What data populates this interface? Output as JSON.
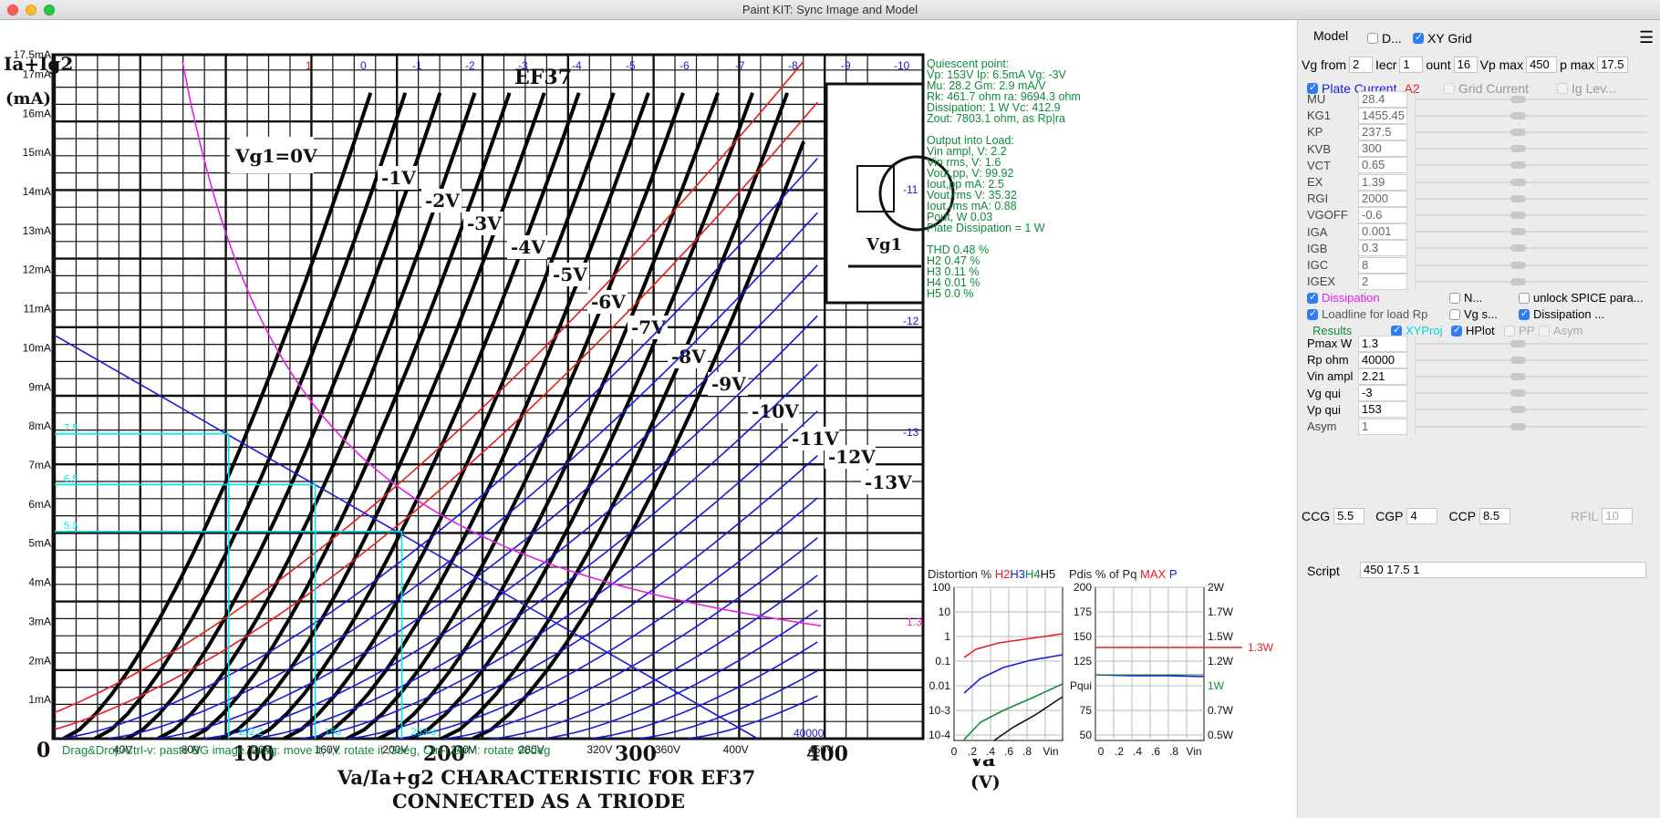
{
  "window": {
    "title": "Paint KIT: Sync Image and Model"
  },
  "plot": {
    "y_ticks": [
      "17.5mA",
      "17mA",
      "16mA",
      "15mA",
      "14mA",
      "13mA",
      "12mA",
      "11mA",
      "10mA",
      "9mA",
      "8mA",
      "7mA",
      "6mA",
      "5mA",
      "4mA",
      "3mA",
      "2mA",
      "1mA"
    ],
    "x_ticks": [
      "40V",
      "80V",
      "120V",
      "160V",
      "200V",
      "240V",
      "280V",
      "320V",
      "360V",
      "400V",
      "450V"
    ],
    "grid_labels_top": [
      "1",
      "0",
      "-1",
      "-2",
      "-3",
      "-4",
      "-5",
      "-6",
      "-7",
      "-8",
      "-9",
      "-10"
    ],
    "grid_labels_right": [
      "-11",
      "-12",
      "-13"
    ],
    "dissipation_label": "1.3",
    "loadline_label": "40000",
    "proj_labels_y": [
      "7.8",
      "6.5",
      "5.3"
    ],
    "proj_labels_x": [
      "102.2",
      "153",
      "203.8"
    ],
    "status_hint": "Drag&Drop/Ctrl-v: paste BG image. Drag: move it, r,l: rotate it .3deg, Ctrl-r,Ctrl-l: rotate 90deg",
    "bg_image": {
      "title": "EF37",
      "y_axis_top": "Ia+Ig2",
      "y_axis_unit": "(mA)",
      "vg_label": "Vg1=0V",
      "curve_labels": [
        "-1V",
        "-2V",
        "-3V",
        "-4V",
        "-5V",
        "-6V",
        "-7V",
        "-8V",
        "-9V",
        "-10V",
        "-11V",
        "-12V",
        "-13V"
      ],
      "x_numbers": [
        "0",
        "100",
        "200",
        "300",
        "400"
      ],
      "caption_1": "Va/Ia+g2 CHARACTERISTIC FOR EF37",
      "caption_2": "CONNECTED AS A TRIODE",
      "va_label": "Va",
      "va_unit": "(V)",
      "vg1_inset": "Vg1"
    },
    "info_lines": [
      "Quiescent point:",
      "Vp: 153V  Ip: 6.5mA  Vg: -3V",
      "Mu: 28.2 Gm: 2.9 mA/V",
      "Rk: 461.7 ohm ra: 9694.3 ohm",
      "Dissipation: 1 W Vc: 412.9",
      "Zout: 7803.1 ohm, as Rp|ra",
      "",
      "Output into Load:",
      "Vin ampl, V: 2.2",
      "Vin rms, V: 1.6",
      "Vout,pp,   V: 99.92",
      "Iout,pp  mA: 2.5",
      "Vout,rms  V: 35.32",
      "Iout,rms  mA: 0.88",
      "Pout, W      0.03",
      "Plate Dissipation = 1 W",
      "",
      "THD 0.48 %",
      "  H2 0.47 %",
      "  H3 0.11 %",
      "  H4 0.01 %",
      "  H5 0.0 %"
    ]
  },
  "distortion": {
    "title_prefix": "Distortion %",
    "h2": "H2",
    "h3": "H3",
    "h4": "H4",
    "h5": "H5",
    "y_ticks": [
      "100",
      "10",
      "1",
      "0.1",
      "0.01",
      "10-3",
      "10-4"
    ],
    "x_ticks": [
      "0",
      ".2",
      ".4",
      ".6",
      ".8",
      "Vin"
    ]
  },
  "pdis": {
    "title_prefix": "Pdis % of Pq",
    "max": "MAX",
    "p": "P",
    "left_ticks": [
      "200",
      "175",
      "150",
      "125",
      "Pqui",
      "75",
      "50"
    ],
    "right_ticks": [
      "2W",
      "1.7W",
      "1.5W",
      "1.2W",
      "1W",
      "0.7W",
      "0.5W"
    ],
    "max_label": "1.3W",
    "x_ticks": [
      "0",
      ".2",
      ".4",
      ".6",
      ".8",
      "Vin"
    ]
  },
  "panel": {
    "model_label": "Model",
    "d_label": "D...",
    "xy_grid_label": "XY Grid",
    "vg_from_label": "Vg from",
    "vg_from": "2",
    "incr_label": "Iecr",
    "incr": "1",
    "count_label": "ount",
    "count": "16",
    "vp_max_label": "Vp max",
    "vp_max": "450",
    "ip_max_label": "p max",
    "ip_max": "17.5",
    "plate_current_label": "Plate Current",
    "a2_label": "A2",
    "grid_current_label": "Grid Current",
    "ig_lev_label": "Ig Lev...",
    "params": [
      {
        "name": "MU",
        "value": "28.4"
      },
      {
        "name": "KG1",
        "value": "1455.45"
      },
      {
        "name": "KP",
        "value": "237.5"
      },
      {
        "name": "KVB",
        "value": "300"
      },
      {
        "name": "VCT",
        "value": "0.65"
      },
      {
        "name": "EX",
        "value": "1.39"
      },
      {
        "name": "RGI",
        "value": "2000"
      },
      {
        "name": "VGOFF",
        "value": "-0.6"
      },
      {
        "name": "IGA",
        "value": "0.001"
      },
      {
        "name": "IGB",
        "value": "0.3"
      },
      {
        "name": "IGC",
        "value": "8"
      },
      {
        "name": "IGEX",
        "value": "2"
      }
    ],
    "dissipation_label": "Dissipation",
    "n_label": "N...",
    "unlock_label": "unlock SPICE para...",
    "loadline_label": "Loadline for load Rp",
    "vg_s_label": "Vg s...",
    "dissipation2_label": "Dissipation ...",
    "results_label": "Results",
    "xyproj_label": "XYProj",
    "hplot_label": "HPlot",
    "pp_label": "PP",
    "asym_label": "Asym",
    "load_params": [
      {
        "name": "Pmax W",
        "value": "1.3"
      },
      {
        "name": "Rp ohm",
        "value": "40000"
      },
      {
        "name": "Vin ampl",
        "value": "2.21"
      },
      {
        "name": "Vg qui",
        "value": "-3"
      },
      {
        "name": "Vp qui",
        "value": "153"
      },
      {
        "name": "Asym",
        "value": "1"
      }
    ],
    "ccg_label": "CCG",
    "ccg": "5.5",
    "cgp_label": "CGP",
    "cgp": "4",
    "ccp_label": "CCP",
    "ccp": "8.5",
    "rfil_label": "RFIL",
    "rfil": "10",
    "script_label": "Script",
    "script_value": "450 17.5 1"
  },
  "colors": {
    "accent": "#2f7cf6",
    "green": "#108a3c",
    "magenta": "#e820e8",
    "cyan": "#00e5ee",
    "blue": "#1a1ad8",
    "red": "#e51f1f"
  }
}
